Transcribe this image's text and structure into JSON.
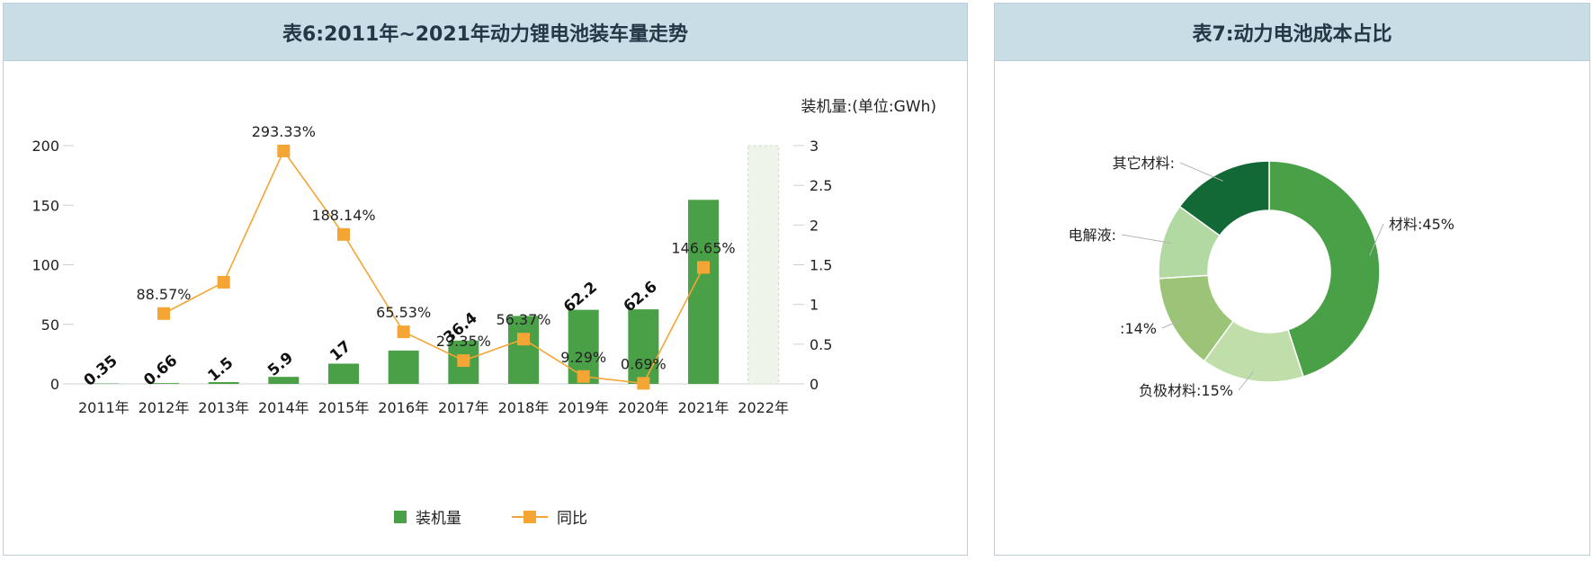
{
  "left_panel": {
    "title": "表6:2011年~2021年动力锂电池装车量走势",
    "unit_note": "装机量:(单位:GWh)",
    "legend": {
      "bar_label": "装机量",
      "line_label": "同比"
    }
  },
  "right_panel": {
    "title": "表7:动力电池成本占比"
  },
  "chart_data": [
    {
      "type": "bar",
      "title": "表6:2011年~2021年动力锂电池装车量走势",
      "categories": [
        "2011年",
        "2012年",
        "2013年",
        "2014年",
        "2015年",
        "2016年",
        "2017年",
        "2018年",
        "2019年",
        "2020年",
        "2021年",
        "2022年"
      ],
      "series": [
        {
          "name": "装机量",
          "type": "bar",
          "axis": "left",
          "values": [
            0.35,
            0.66,
            1.5,
            5.9,
            17,
            28,
            36.4,
            57,
            62.2,
            62.6,
            154.5,
            null
          ],
          "labels": [
            "0.35",
            "0.66",
            "1.5",
            "5.9",
            "17",
            "",
            "36.4",
            "",
            "62.2",
            "62.6",
            "",
            ""
          ]
        },
        {
          "name": "同比",
          "type": "line",
          "axis": "right",
          "values": [
            null,
            0.8857,
            1.28,
            2.9333,
            1.8814,
            0.6553,
            0.2935,
            0.5637,
            0.0929,
            0.0069,
            1.4665,
            null
          ],
          "labels": [
            "",
            "88.57%",
            "",
            "293.33%",
            "188.14%",
            "65.53%",
            "29.35%",
            "56.37%",
            "9.29%",
            "0.69%",
            "146.65%",
            ""
          ]
        }
      ],
      "y_left": {
        "lim": [
          0,
          200
        ],
        "ticks": [
          "0",
          "50",
          "100",
          "150",
          "200"
        ]
      },
      "y_right": {
        "lim": [
          0,
          3
        ],
        "ticks": [
          "0",
          "0.5",
          "1",
          "1.5",
          "2",
          "2.5",
          "3"
        ]
      },
      "colors": {
        "bar": "#4aa046",
        "line": "#f4a534",
        "placeholder": "#eef4ea"
      },
      "legend_position": "bottom-center"
    },
    {
      "type": "pie",
      "title": "表7:动力电池成本占比",
      "slices": [
        {
          "label": "材料:45%",
          "value": 45,
          "color": "#4aa046"
        },
        {
          "label": "负极材料:15%",
          "value": 15,
          "color": "#bfdeaa"
        },
        {
          "label": ":14%",
          "value": 14,
          "color": "#9cc476"
        },
        {
          "label": "电解液:",
          "value": 11,
          "color": "#b3d9a3"
        },
        {
          "label": "其它材料:",
          "value": 15,
          "color": "#136936"
        }
      ]
    }
  ]
}
